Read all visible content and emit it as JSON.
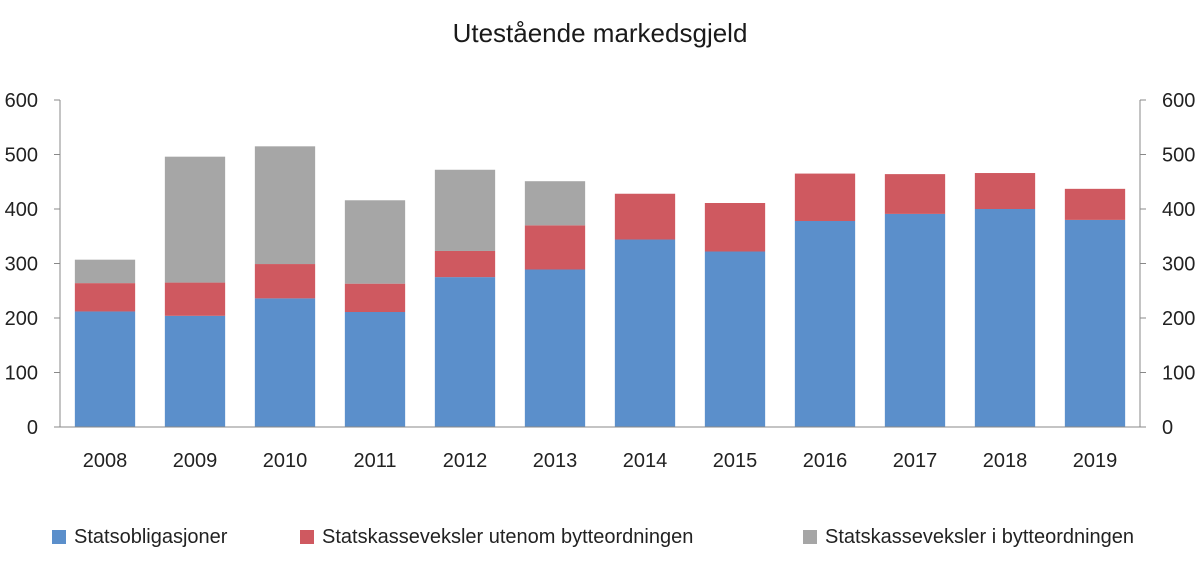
{
  "chart_data": {
    "type": "bar",
    "stacked": true,
    "title": "Utestående markedsgjeld",
    "xlabel": "",
    "ylabel": "",
    "ylim": [
      0,
      600
    ],
    "yticks": [
      "0",
      "100",
      "200",
      "300",
      "400",
      "500",
      "600"
    ],
    "grid": false,
    "legend_position": "bottom",
    "categories": [
      "2008",
      "2009",
      "2010",
      "2011",
      "2012",
      "2013",
      "2014",
      "2015",
      "2016",
      "2017",
      "2018",
      "2019"
    ],
    "series": [
      {
        "name": "Statsobligasjoner",
        "color": "#5b8fcb",
        "values": [
          212,
          204,
          236,
          211,
          275,
          289,
          344,
          322,
          378,
          391,
          400,
          380
        ]
      },
      {
        "name": "Statskasseveksler utenom bytteordningen",
        "color": "#cf5960",
        "values": [
          52,
          61,
          63,
          52,
          48,
          81,
          84,
          89,
          87,
          73,
          66,
          57
        ]
      },
      {
        "name": "Statskasseveksler i bytteordningen",
        "color": "#a6a6a6",
        "values": [
          43,
          231,
          216,
          153,
          149,
          81,
          0,
          0,
          0,
          0,
          0,
          0
        ]
      }
    ]
  }
}
